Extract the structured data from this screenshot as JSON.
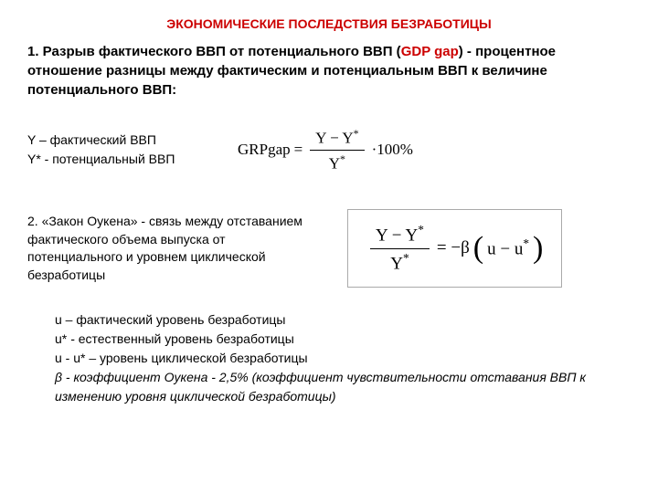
{
  "title": "ЭКОНОМИЧЕСКИЕ ПОСЛЕДСТВИЯ БЕЗРАБОТИЦЫ",
  "section1": {
    "intro_prefix": "1.  Разрыв фактического ВВП от потенциального ВВП (",
    "gdp_gap_label": "GDP gap",
    "intro_suffix": ") - процентное отношение разницы между фактическим и потенциальным ВВП к величине потенциального ВВП:",
    "legend_y": "Y – фактический ВВП",
    "legend_ystar": "Y* - потенциальный ВВП",
    "formula_lhs": "GRPgap",
    "formula_num": "Y − Y*",
    "formula_den": "Y*",
    "formula_suffix": "·100%"
  },
  "section2": {
    "text": "2. «Закон Оукена» - связь между отставанием фактического объема выпуска от потенциального и уровнем циклической безработицы",
    "formula_num": "Y − Y*",
    "formula_den": "Y*",
    "formula_rhs_prefix": " = −β",
    "formula_rhs_inner": "u − u*",
    "legend_u": "u –  фактический уровень безработицы",
    "legend_ustar": "u* - естественный уровень безработицы",
    "legend_diff": "u - u* – уровень циклической безработицы",
    "legend_beta": "β - коэффициент Оукена - 2,5%  (коэффициент чувствительности отставания ВВП к изменению уровня циклической безработицы)"
  },
  "colors": {
    "accent": "#cc0000",
    "text": "#000000",
    "background": "#ffffff",
    "box_border": "#aaaaaa"
  }
}
